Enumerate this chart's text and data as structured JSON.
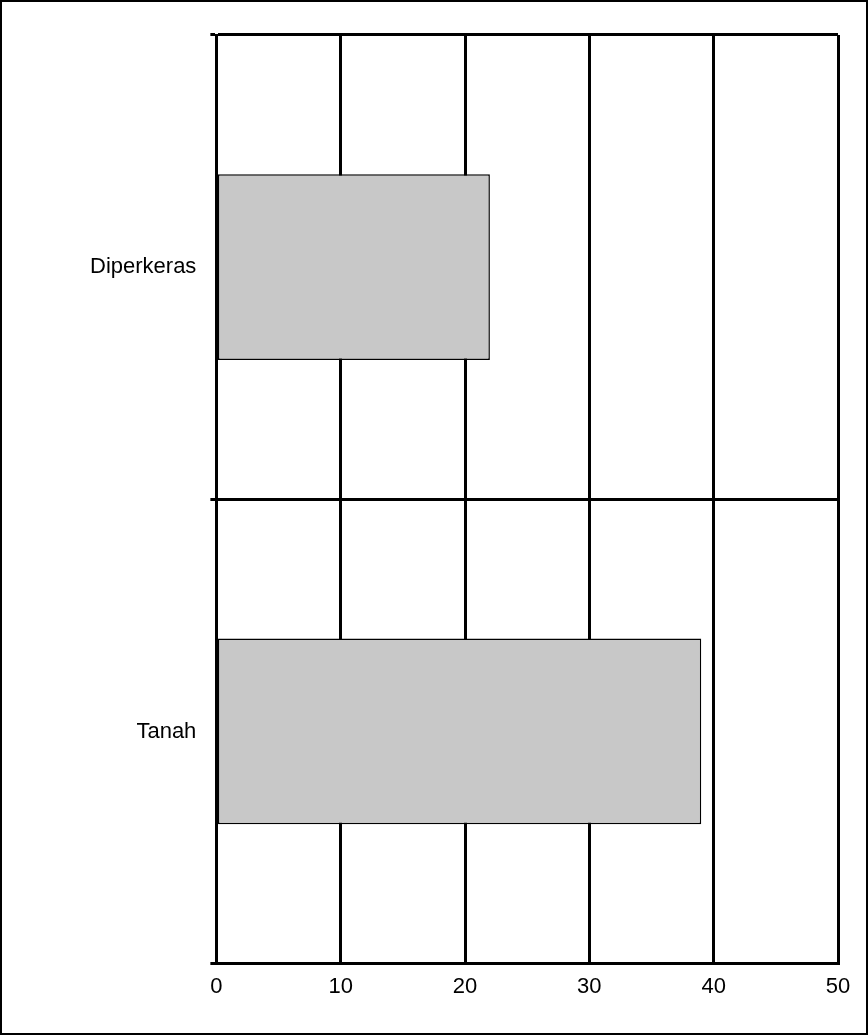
{
  "chart_data": {
    "type": "bar",
    "orientation": "horizontal",
    "categories": [
      "Diperkeras",
      "Tanah"
    ],
    "values": [
      22,
      39
    ],
    "color": "#c8c8c8",
    "xlim": [
      0,
      50
    ],
    "xticks": [
      0,
      10,
      20,
      30,
      40,
      50
    ],
    "grid": true,
    "legend": false
  }
}
